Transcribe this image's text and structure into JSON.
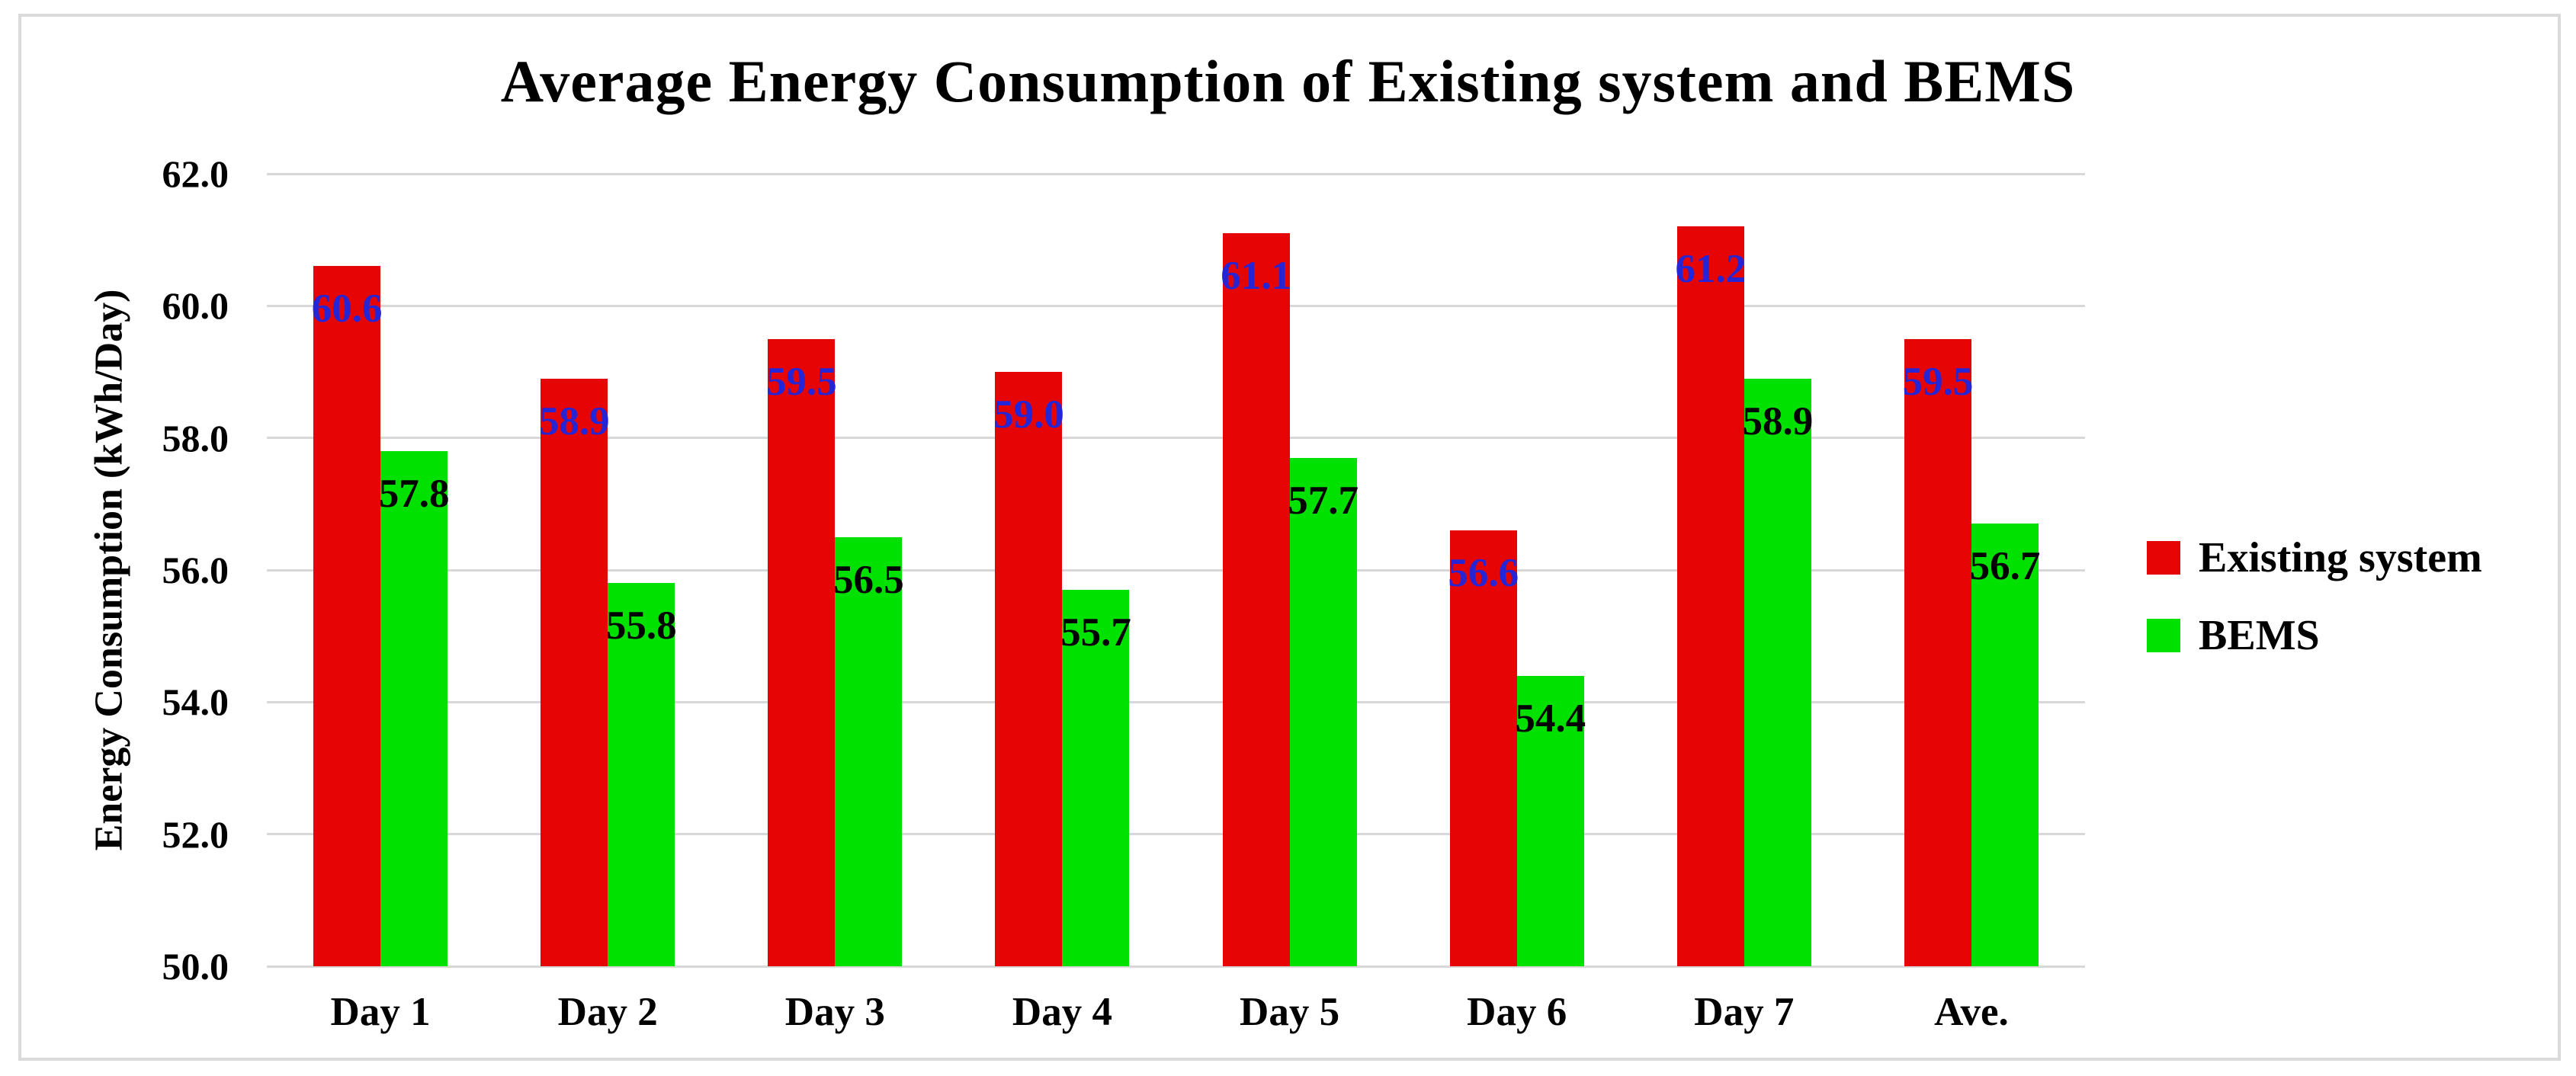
{
  "title": "Average Energy Consumption of Existing system and BEMS",
  "y_axis": {
    "label": "Energy Consumption (kWh/Day)",
    "min": 50.0,
    "max": 62.0,
    "step": 2.0,
    "tick_labels": [
      "62.0",
      "60.0",
      "58.0",
      "56.0",
      "54.0",
      "52.0",
      "50.0"
    ]
  },
  "colors": {
    "existing_system_bar": "#e60505",
    "bems_bar": "#00e100",
    "existing_label_text": "#2525d6",
    "bems_label_text": "#000000",
    "gridline": "#d8d8d8",
    "frame_border": "#dadada",
    "background": "#ffffff"
  },
  "chart_data": {
    "type": "bar",
    "title": "Average Energy Consumption of Existing system and BEMS",
    "xlabel": "",
    "ylabel": "Energy Consumption (kWh/Day)",
    "ylim": [
      50.0,
      62.0
    ],
    "y_tick_step": 2.0,
    "grid": true,
    "legend_position": "right",
    "categories": [
      "Day 1",
      "Day 2",
      "Day 3",
      "Day 4",
      "Day 5",
      "Day 6",
      "Day 7",
      "Ave."
    ],
    "series": [
      {
        "name": "Existing system",
        "color": "#e60505",
        "label_color": "#2525d6",
        "values": [
          60.6,
          58.9,
          59.5,
          59.0,
          61.1,
          56.6,
          61.2,
          59.5
        ],
        "value_labels": [
          "60.6",
          "58.9",
          "59.5",
          "59.0",
          "61.1",
          "56.6",
          "61.2",
          "59.5"
        ]
      },
      {
        "name": "BEMS",
        "color": "#00e100",
        "label_color": "#000000",
        "values": [
          57.8,
          55.8,
          56.5,
          55.7,
          57.7,
          54.4,
          58.9,
          56.7
        ],
        "value_labels": [
          "57.8",
          "55.8",
          "56.5",
          "55.7",
          "57.7",
          "54.4",
          "58.9",
          "56.7"
        ]
      }
    ]
  }
}
